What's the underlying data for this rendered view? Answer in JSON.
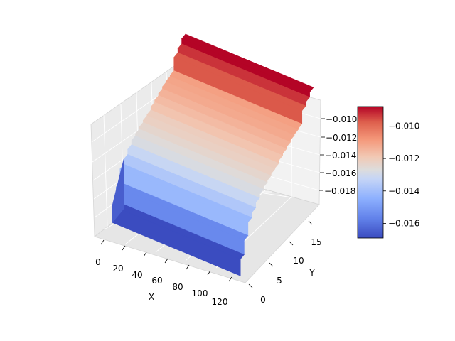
{
  "chart_data": {
    "type": "surface3d",
    "title": "",
    "x_axis": {
      "label": "X",
      "ticks": [
        "0",
        "20",
        "40",
        "60",
        "80",
        "100",
        "120"
      ],
      "range": [
        0,
        127
      ]
    },
    "y_axis": {
      "label": "Y",
      "ticks": [
        "0",
        "5",
        "10",
        "15"
      ],
      "range": [
        0,
        19
      ]
    },
    "z_axis": {
      "label": "",
      "ticks": [
        "−0.010",
        "−0.012",
        "−0.014",
        "−0.016",
        "−0.018"
      ]
    },
    "colormap": "coolwarm",
    "colorbar": {
      "ticks": [
        "−0.010",
        "−0.012",
        "−0.014",
        "−0.016"
      ],
      "tick_values": [
        -0.01,
        -0.012,
        -0.014,
        -0.016
      ],
      "range": [
        -0.0169,
        -0.0088
      ]
    },
    "surface_rows": [
      {
        "y": 0,
        "z": -0.0169
      },
      {
        "y": 1,
        "z": -0.0155
      },
      {
        "y": 2,
        "z": -0.0142
      },
      {
        "y": 3,
        "z": -0.0137
      },
      {
        "y": 4,
        "z": -0.0132
      },
      {
        "y": 5,
        "z": -0.0128
      },
      {
        "y": 6,
        "z": -0.0126
      },
      {
        "y": 7,
        "z": -0.0124
      },
      {
        "y": 8,
        "z": -0.0122
      },
      {
        "y": 9,
        "z": -0.0121
      },
      {
        "y": 10,
        "z": -0.0118
      },
      {
        "y": 11,
        "z": -0.0116
      },
      {
        "y": 12,
        "z": -0.0114
      },
      {
        "y": 13,
        "z": -0.0112
      },
      {
        "y": 14,
        "z": -0.0111
      },
      {
        "y": 15,
        "z": -0.011
      },
      {
        "y": 16,
        "z": -0.0097
      },
      {
        "y": 17,
        "z": -0.0093
      },
      {
        "y": 18,
        "z": -0.0088
      }
    ],
    "grid": true
  }
}
